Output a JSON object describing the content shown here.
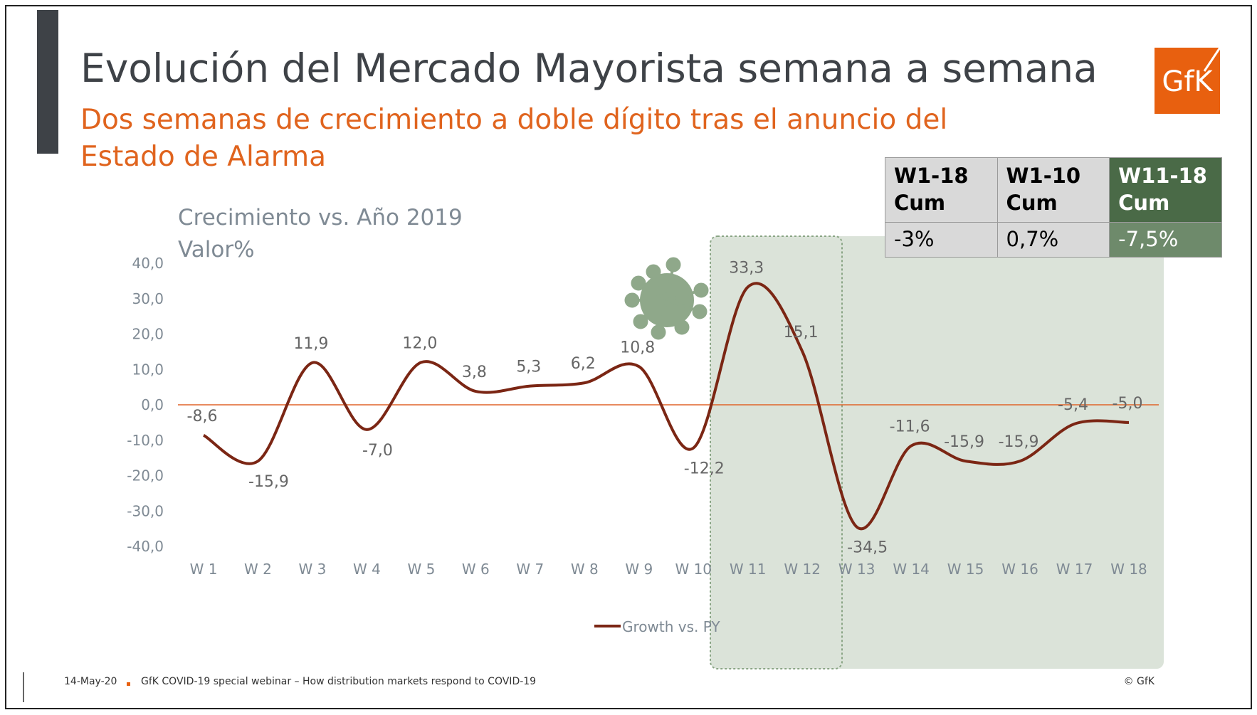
{
  "header": {
    "title": "Evolución del Mercado Mayorista semana a semana",
    "subtitle": "Dos semanas de crecimiento a doble dígito tras el anuncio del Estado de Alarma",
    "logo": "GfK"
  },
  "table": {
    "header": [
      "W1-18 Cum",
      "W1-10 Cum",
      "W11-18 Cum"
    ],
    "rows": [
      [
        "-3%",
        "0,7%",
        "-7,5%"
      ]
    ]
  },
  "chart_data": {
    "type": "line",
    "axis_title": [
      "Crecimiento vs. Año 2019",
      "Valor%"
    ],
    "categories": [
      "W 1",
      "W 2",
      "W 3",
      "W 4",
      "W 5",
      "W 6",
      "W 7",
      "W 8",
      "W 9",
      "W 10",
      "W 11",
      "W 12",
      "W 13",
      "W 14",
      "W 15",
      "W 16",
      "W 17",
      "W 18"
    ],
    "series": [
      {
        "name": "Growth vs. PY",
        "color": "#7b2614",
        "values": [
          -8.6,
          -15.9,
          11.9,
          -7.0,
          12.0,
          3.8,
          5.3,
          6.2,
          10.8,
          -12.2,
          33.3,
          15.1,
          -34.5,
          -11.6,
          -15.9,
          -15.9,
          -5.4,
          -5.0
        ],
        "value_labels": [
          "-8,6",
          "-15,9",
          "11,9",
          "-7,0",
          "12,0",
          "3,8",
          "5,3",
          "6,2",
          "10,8",
          "-12,2",
          "33,3",
          "15,1",
          "-34,5",
          "-11,6",
          "-15,9",
          "-15,9",
          "-5,4",
          "-5,0"
        ]
      }
    ],
    "ylim": [
      -40,
      40
    ],
    "yticks": [
      {
        "value": 40,
        "label": "40,0"
      },
      {
        "value": 30,
        "label": "30,0"
      },
      {
        "value": 20,
        "label": "20,0"
      },
      {
        "value": 10,
        "label": "10,0"
      },
      {
        "value": 0,
        "label": "0,0"
      },
      {
        "value": -10,
        "label": "-10,0"
      },
      {
        "value": -20,
        "label": "-20,0"
      },
      {
        "value": -30,
        "label": "-30,0"
      },
      {
        "value": -40,
        "label": "-40,0"
      }
    ],
    "zero_line_color": "#e0642a",
    "legend": "bottom"
  },
  "footer": {
    "date": "14-May-20",
    "event": "GfK COVID-19 special webinar – How distribution markets respond to COVID-19",
    "copyright": "© GfK"
  }
}
